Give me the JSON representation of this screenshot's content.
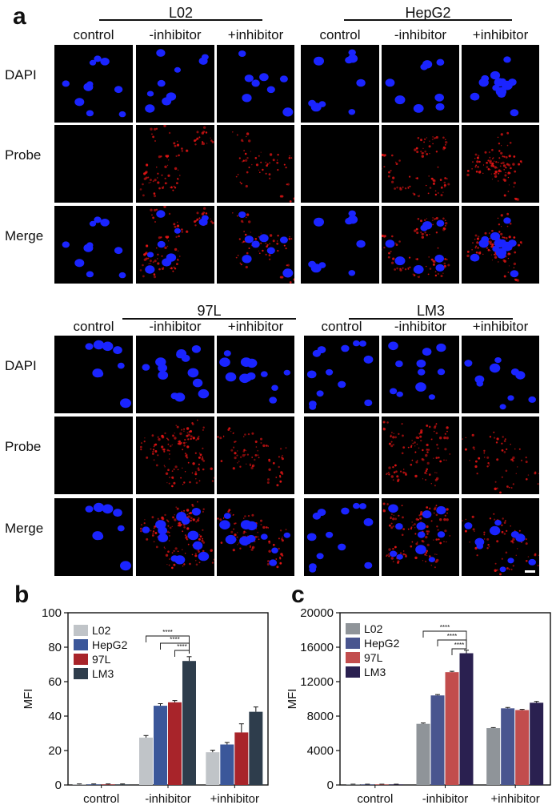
{
  "panel_labels": {
    "a": "a",
    "b": "b",
    "c": "c"
  },
  "micrograph_groups": [
    {
      "title": "L02",
      "columns": [
        "control",
        "-inhibitor",
        "+inhibitor"
      ],
      "rows": [
        "DAPI",
        "Probe",
        "Merge"
      ]
    },
    {
      "title": "HepG2",
      "columns": [
        "control",
        "-inhibitor",
        "+inhibitor"
      ],
      "rows": []
    },
    {
      "title": "97L",
      "columns": [
        "control",
        "-inhibitor",
        "+inhibitor"
      ],
      "rows": [
        "DAPI",
        "Probe",
        "Merge"
      ]
    },
    {
      "title": "LM3",
      "columns": [
        "control",
        "-inhibitor",
        "+inhibitor"
      ],
      "rows": []
    }
  ],
  "colors": {
    "dapi": "#1a24ff",
    "probe": "#e01414",
    "L02": "#c0c4c8",
    "HepG2": "#3b579a",
    "97L": "#a8242a",
    "LM3": "#2e3d4c",
    "L02_c": "#8f9499",
    "HepG2_c": "#49558f",
    "97L_c": "#c24d4d",
    "LM3_c": "#2a2050"
  },
  "chart_data": [
    {
      "type": "bar",
      "panel": "b",
      "title": "",
      "xlabel": "",
      "ylabel": "MFI",
      "categories": [
        "control",
        "-inhibitor",
        "+inhibitor"
      ],
      "yticks": [
        0,
        20,
        40,
        60,
        80,
        100
      ],
      "ylim": [
        0,
        100
      ],
      "legend_position": "top-left",
      "series": [
        {
          "name": "L02",
          "values": [
            0.3,
            27.5,
            19.0
          ],
          "errors": [
            0.3,
            1.2,
            1.2
          ]
        },
        {
          "name": "HepG2",
          "values": [
            0.3,
            46.0,
            23.5
          ],
          "errors": [
            0.3,
            1.2,
            1.2
          ]
        },
        {
          "name": "97L",
          "values": [
            0.3,
            48.0,
            30.5
          ],
          "errors": [
            0.3,
            1.0,
            5.0
          ]
        },
        {
          "name": "LM3",
          "values": [
            0.3,
            72.0,
            42.5
          ],
          "errors": [
            0.3,
            2.5,
            2.8
          ]
        }
      ],
      "significance": [
        {
          "from": "L02",
          "to": "LM3",
          "category": "-inhibitor",
          "label": "****"
        },
        {
          "from": "HepG2",
          "to": "LM3",
          "category": "-inhibitor",
          "label": "****"
        },
        {
          "from": "97L",
          "to": "LM3",
          "category": "-inhibitor",
          "label": "****"
        }
      ]
    },
    {
      "type": "bar",
      "panel": "c",
      "title": "",
      "xlabel": "",
      "ylabel": "MFI",
      "categories": [
        "control",
        "-inhibitor",
        "+inhibitor"
      ],
      "yticks": [
        0,
        4000,
        8000,
        12000,
        16000,
        20000
      ],
      "ylim": [
        0,
        20000
      ],
      "legend_position": "top-left",
      "series": [
        {
          "name": "L02",
          "values": [
            60,
            7100,
            6600
          ],
          "errors": [
            30,
            100,
            60
          ]
        },
        {
          "name": "HepG2",
          "values": [
            60,
            10400,
            8900
          ],
          "errors": [
            30,
            100,
            100
          ]
        },
        {
          "name": "97L",
          "values": [
            60,
            13100,
            8700
          ],
          "errors": [
            30,
            100,
            80
          ]
        },
        {
          "name": "LM3",
          "values": [
            60,
            15300,
            9550
          ],
          "errors": [
            30,
            350,
            150
          ]
        }
      ],
      "significance": [
        {
          "from": "L02",
          "to": "LM3",
          "category": "-inhibitor",
          "label": "****"
        },
        {
          "from": "HepG2",
          "to": "LM3",
          "category": "-inhibitor",
          "label": "****"
        },
        {
          "from": "97L",
          "to": "LM3",
          "category": "-inhibitor",
          "label": "****"
        }
      ]
    }
  ]
}
